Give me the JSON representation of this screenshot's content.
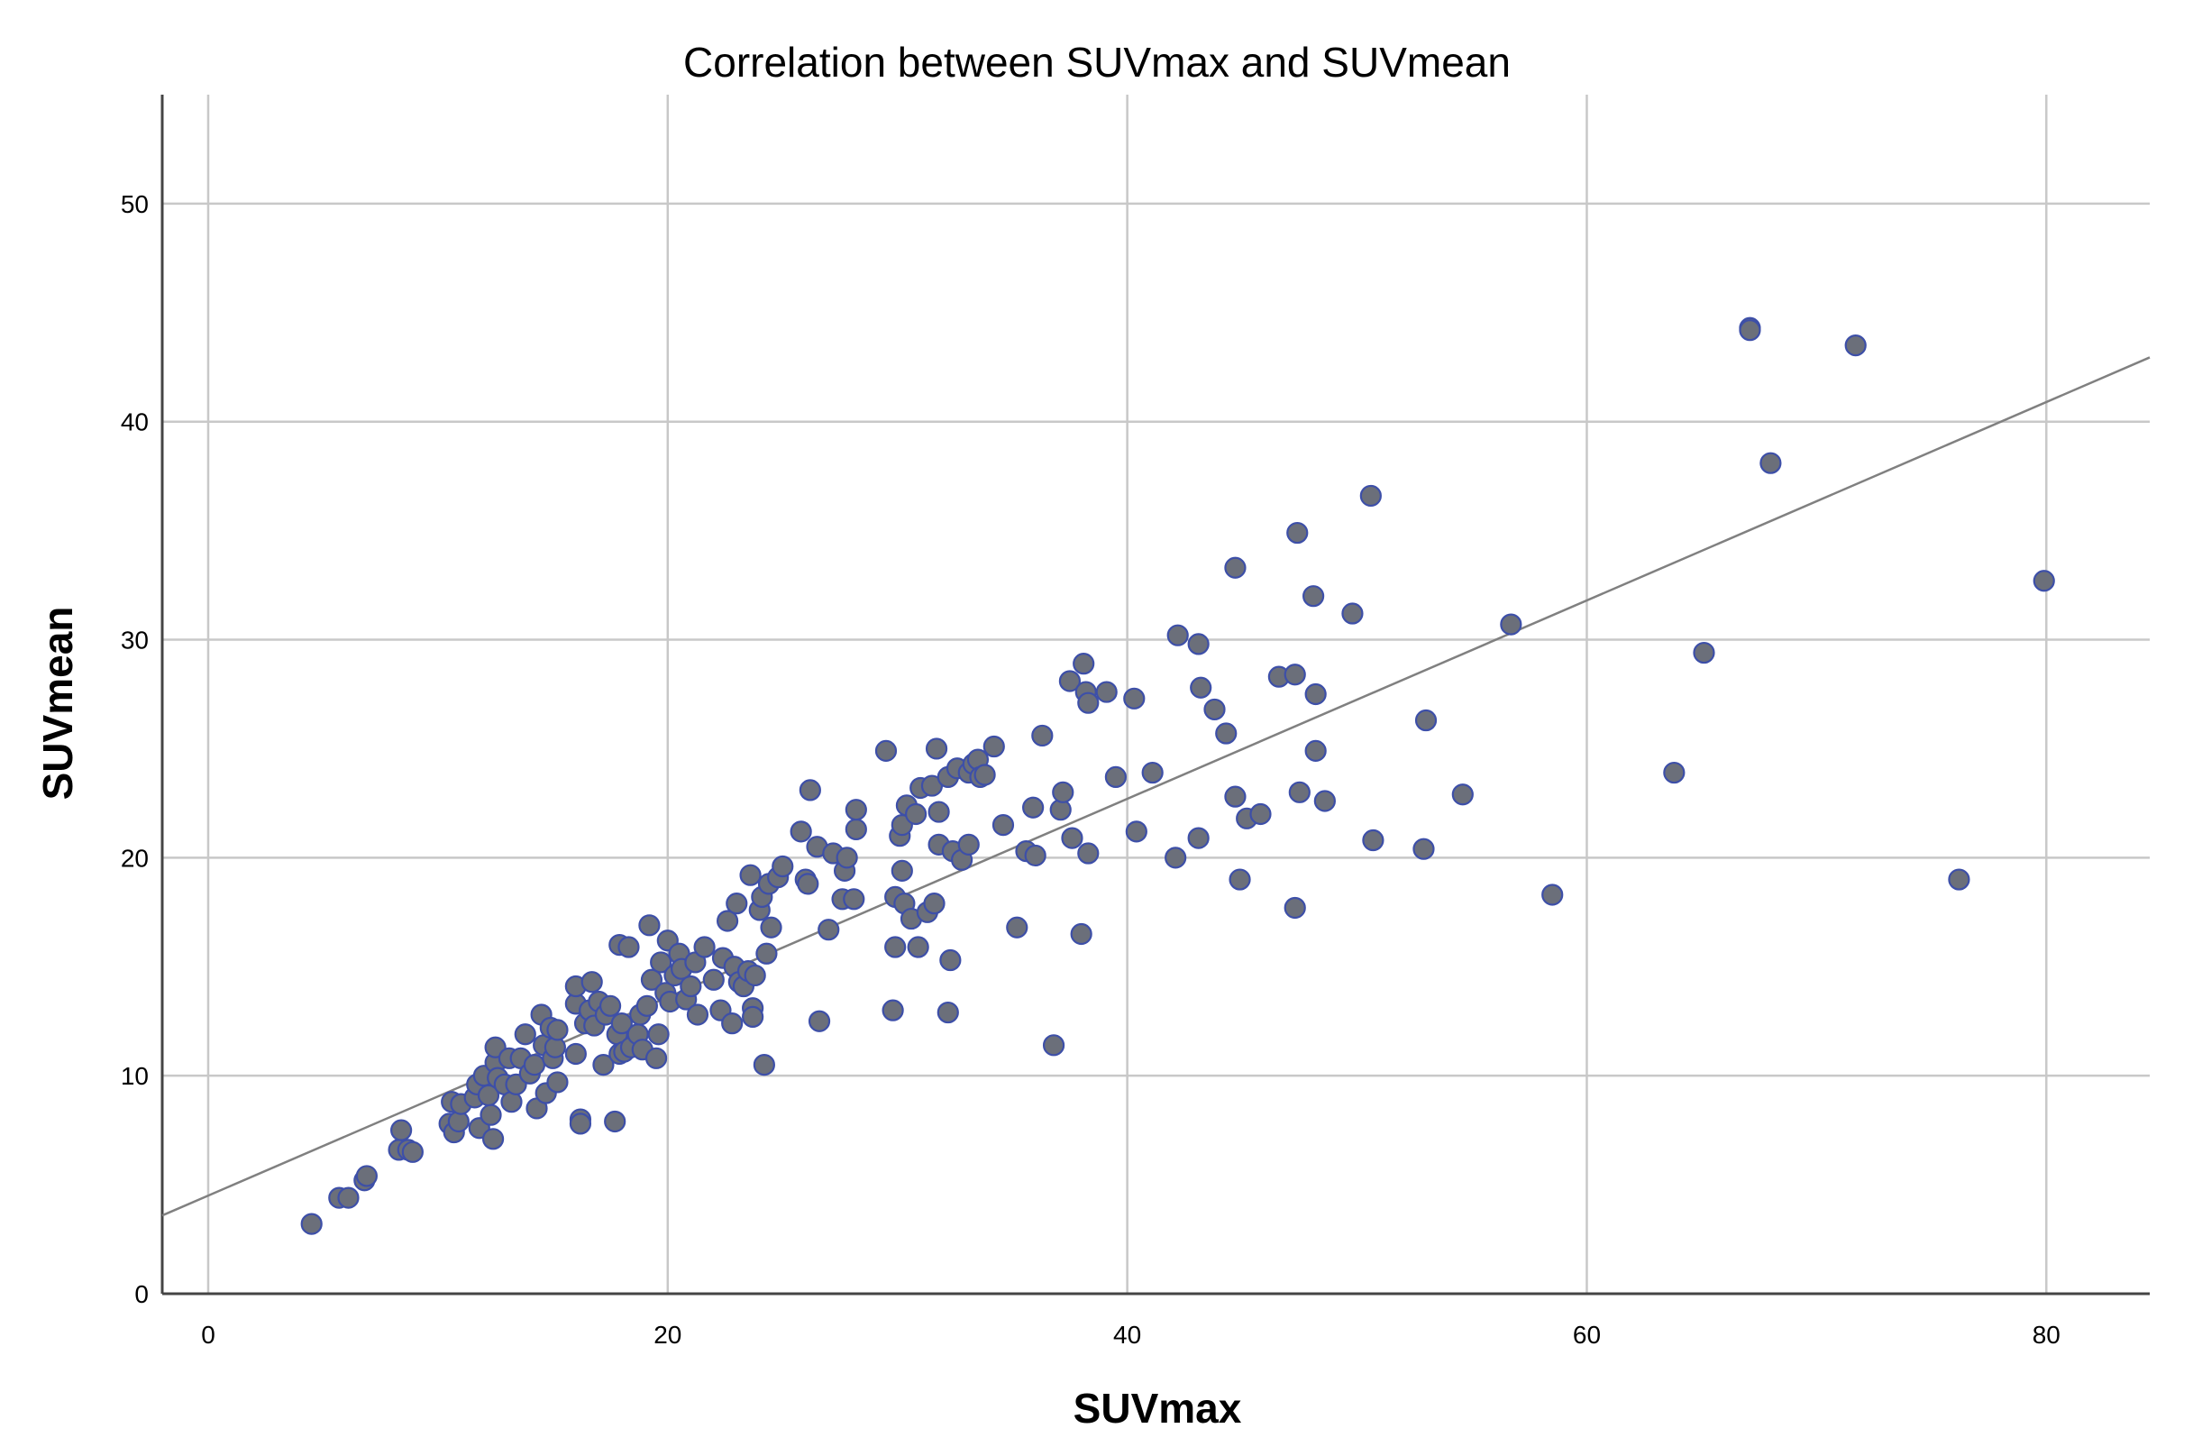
{
  "chart_data": {
    "type": "scatter",
    "title": "Correlation between SUVmax and SUVmean",
    "xlabel": "SUVmax",
    "ylabel": "SUVmean",
    "xlim": [
      -2,
      84.5
    ],
    "ylim": [
      0,
      55
    ],
    "xticks": [
      0,
      20,
      40,
      60,
      80
    ],
    "yticks": [
      0,
      10,
      20,
      30,
      40,
      50
    ],
    "grid": true,
    "fit_line": {
      "intercept": 4.5,
      "slope": 0.455
    },
    "colors": {
      "point_fill": "#6b6f7a",
      "point_stroke": "#3d4fa8",
      "grid": "#c8c8c8",
      "fit_line": "#808080",
      "axis": "#444444"
    },
    "series": [
      {
        "points": [
          [
            4.5,
            3.2
          ],
          [
            5.7,
            4.4
          ],
          [
            6.1,
            4.4
          ],
          [
            6.8,
            5.2
          ],
          [
            6.9,
            5.4
          ],
          [
            8.3,
            6.6
          ],
          [
            8.4,
            7.5
          ],
          [
            8.7,
            6.6
          ],
          [
            8.9,
            6.5
          ],
          [
            10.5,
            7.8
          ],
          [
            10.6,
            8.8
          ],
          [
            10.7,
            7.4
          ],
          [
            10.9,
            7.9
          ],
          [
            11.0,
            8.7
          ],
          [
            11.6,
            9.0
          ],
          [
            11.7,
            9.6
          ],
          [
            11.8,
            7.6
          ],
          [
            12.0,
            10.0
          ],
          [
            12.2,
            9.1
          ],
          [
            12.3,
            8.2
          ],
          [
            12.4,
            7.1
          ],
          [
            12.5,
            10.6
          ],
          [
            12.5,
            11.3
          ],
          [
            12.6,
            9.9
          ],
          [
            12.9,
            9.6
          ],
          [
            13.1,
            10.8
          ],
          [
            13.2,
            8.8
          ],
          [
            13.4,
            9.6
          ],
          [
            13.6,
            10.8
          ],
          [
            13.8,
            11.9
          ],
          [
            14.0,
            10.1
          ],
          [
            14.2,
            10.5
          ],
          [
            14.3,
            8.5
          ],
          [
            14.5,
            12.8
          ],
          [
            14.6,
            11.4
          ],
          [
            14.7,
            9.2
          ],
          [
            14.9,
            12.2
          ],
          [
            15.0,
            10.8
          ],
          [
            15.1,
            11.3
          ],
          [
            15.2,
            9.7
          ],
          [
            15.2,
            12.1
          ],
          [
            16.0,
            13.3
          ],
          [
            16.0,
            14.1
          ],
          [
            16.0,
            11.0
          ],
          [
            16.2,
            8.0
          ],
          [
            16.2,
            7.8
          ],
          [
            16.4,
            12.4
          ],
          [
            16.6,
            13.0
          ],
          [
            16.7,
            14.3
          ],
          [
            16.8,
            12.3
          ],
          [
            17.0,
            13.4
          ],
          [
            17.2,
            10.5
          ],
          [
            17.3,
            12.8
          ],
          [
            17.5,
            13.2
          ],
          [
            17.7,
            7.9
          ],
          [
            17.8,
            11.9
          ],
          [
            17.9,
            11.0
          ],
          [
            17.9,
            16.0
          ],
          [
            18.0,
            12.4
          ],
          [
            18.1,
            11.1
          ],
          [
            18.3,
            15.9
          ],
          [
            18.4,
            11.3
          ],
          [
            18.7,
            11.9
          ],
          [
            18.8,
            12.8
          ],
          [
            18.9,
            11.2
          ],
          [
            19.1,
            13.2
          ],
          [
            19.2,
            16.9
          ],
          [
            19.3,
            14.4
          ],
          [
            19.5,
            10.8
          ],
          [
            19.6,
            11.9
          ],
          [
            19.7,
            15.2
          ],
          [
            19.9,
            13.8
          ],
          [
            20.0,
            16.2
          ],
          [
            20.1,
            13.4
          ],
          [
            20.3,
            14.6
          ],
          [
            20.5,
            15.6
          ],
          [
            20.6,
            14.9
          ],
          [
            20.8,
            13.5
          ],
          [
            21.0,
            14.1
          ],
          [
            21.2,
            15.2
          ],
          [
            21.3,
            12.8
          ],
          [
            21.6,
            15.9
          ],
          [
            22.0,
            14.4
          ],
          [
            22.3,
            13.0
          ],
          [
            22.4,
            15.4
          ],
          [
            22.6,
            17.1
          ],
          [
            22.8,
            12.4
          ],
          [
            22.9,
            15.0
          ],
          [
            23.0,
            17.9
          ],
          [
            23.1,
            14.3
          ],
          [
            23.3,
            14.1
          ],
          [
            23.5,
            14.8
          ],
          [
            23.6,
            19.2
          ],
          [
            23.7,
            13.1
          ],
          [
            23.7,
            12.7
          ],
          [
            23.8,
            14.6
          ],
          [
            24.0,
            17.6
          ],
          [
            24.1,
            18.2
          ],
          [
            24.2,
            10.5
          ],
          [
            24.3,
            15.6
          ],
          [
            24.4,
            18.8
          ],
          [
            24.5,
            16.8
          ],
          [
            24.8,
            19.1
          ],
          [
            25.0,
            19.6
          ],
          [
            25.8,
            21.2
          ],
          [
            26.0,
            19.0
          ],
          [
            26.1,
            18.8
          ],
          [
            26.2,
            23.1
          ],
          [
            26.5,
            20.5
          ],
          [
            26.6,
            12.5
          ],
          [
            27.0,
            16.7
          ],
          [
            27.2,
            20.2
          ],
          [
            27.6,
            18.1
          ],
          [
            27.7,
            19.4
          ],
          [
            27.8,
            20.0
          ],
          [
            28.1,
            18.1
          ],
          [
            28.2,
            21.3
          ],
          [
            28.2,
            22.2
          ],
          [
            29.5,
            24.9
          ],
          [
            29.8,
            13.0
          ],
          [
            29.9,
            18.2
          ],
          [
            29.9,
            15.9
          ],
          [
            30.1,
            21.0
          ],
          [
            30.2,
            21.5
          ],
          [
            30.2,
            19.4
          ],
          [
            30.3,
            17.9
          ],
          [
            30.4,
            22.4
          ],
          [
            30.6,
            17.2
          ],
          [
            30.8,
            22.0
          ],
          [
            30.9,
            15.9
          ],
          [
            31.0,
            23.2
          ],
          [
            31.3,
            17.5
          ],
          [
            31.5,
            23.3
          ],
          [
            31.6,
            17.9
          ],
          [
            31.7,
            25.0
          ],
          [
            31.8,
            20.6
          ],
          [
            31.8,
            22.1
          ],
          [
            32.2,
            12.9
          ],
          [
            32.2,
            23.7
          ],
          [
            32.3,
            15.3
          ],
          [
            32.4,
            20.3
          ],
          [
            32.6,
            24.1
          ],
          [
            32.8,
            19.9
          ],
          [
            33.1,
            23.9
          ],
          [
            33.1,
            20.6
          ],
          [
            33.3,
            24.3
          ],
          [
            33.5,
            24.5
          ],
          [
            33.6,
            23.7
          ],
          [
            33.8,
            23.8
          ],
          [
            34.2,
            25.1
          ],
          [
            34.6,
            21.5
          ],
          [
            35.2,
            16.8
          ],
          [
            35.6,
            20.3
          ],
          [
            35.9,
            22.3
          ],
          [
            36.0,
            20.1
          ],
          [
            36.3,
            25.6
          ],
          [
            36.8,
            11.4
          ],
          [
            37.1,
            22.2
          ],
          [
            37.2,
            23.0
          ],
          [
            37.5,
            28.1
          ],
          [
            37.6,
            20.9
          ],
          [
            38.0,
            16.5
          ],
          [
            38.1,
            28.9
          ],
          [
            38.2,
            27.6
          ],
          [
            38.3,
            27.1
          ],
          [
            38.3,
            20.2
          ],
          [
            39.1,
            27.6
          ],
          [
            39.5,
            23.7
          ],
          [
            40.3,
            27.3
          ],
          [
            40.4,
            21.2
          ],
          [
            41.1,
            23.9
          ],
          [
            42.1,
            20.0
          ],
          [
            42.2,
            30.2
          ],
          [
            43.1,
            20.9
          ],
          [
            43.1,
            29.8
          ],
          [
            43.2,
            27.8
          ],
          [
            43.8,
            26.8
          ],
          [
            44.3,
            25.7
          ],
          [
            44.7,
            22.8
          ],
          [
            44.7,
            33.3
          ],
          [
            44.9,
            19.0
          ],
          [
            45.2,
            21.8
          ],
          [
            45.8,
            22.0
          ],
          [
            46.6,
            28.3
          ],
          [
            47.3,
            28.4
          ],
          [
            47.3,
            17.7
          ],
          [
            47.4,
            34.9
          ],
          [
            47.5,
            23.0
          ],
          [
            48.1,
            32.0
          ],
          [
            48.2,
            27.5
          ],
          [
            48.2,
            24.9
          ],
          [
            48.6,
            22.6
          ],
          [
            49.8,
            31.2
          ],
          [
            50.6,
            36.6
          ],
          [
            50.7,
            20.8
          ],
          [
            52.9,
            20.4
          ],
          [
            53.0,
            26.3
          ],
          [
            54.6,
            22.9
          ],
          [
            56.7,
            30.7
          ],
          [
            58.5,
            18.3
          ],
          [
            63.8,
            23.9
          ],
          [
            65.1,
            29.4
          ],
          [
            67.1,
            44.3
          ],
          [
            67.1,
            44.2
          ],
          [
            68.0,
            38.1
          ],
          [
            71.7,
            43.5
          ],
          [
            76.2,
            19.0
          ],
          [
            79.9,
            32.7
          ]
        ]
      }
    ]
  }
}
